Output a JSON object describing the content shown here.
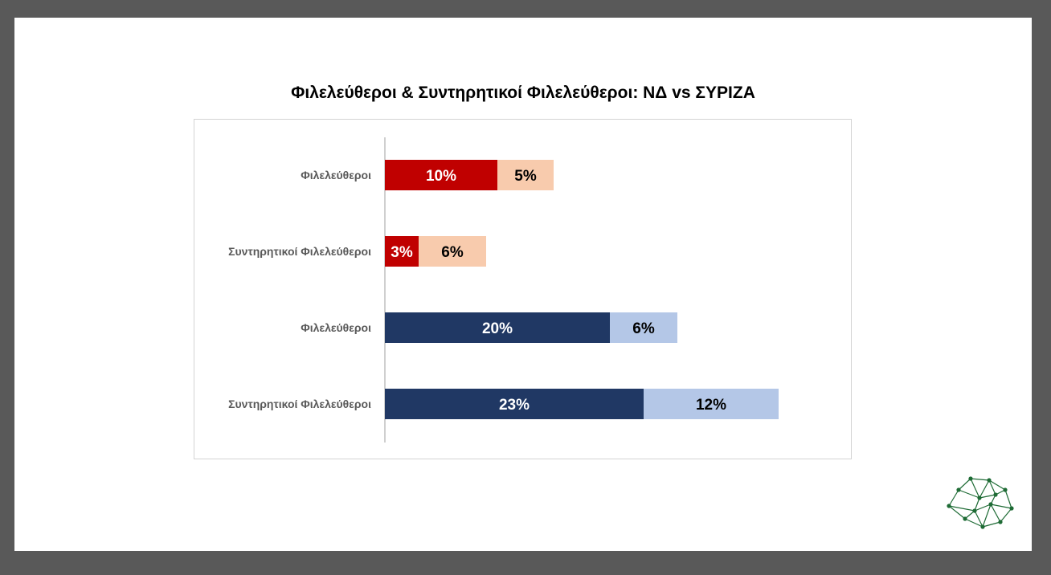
{
  "title": "Φιλελεύθεροι & Συντηρητικοί Φιλελεύθεροι: ΝΔ vs ΣΥΡΙΖΑ",
  "colors": {
    "nd_primary": "#c00000",
    "nd_secondary": "#f8cbad",
    "syriza_primary": "#203864",
    "syriza_secondary": "#b4c7e7",
    "axis": "#bfbfbf",
    "label_text": "#595959",
    "logo": "#1e6b35"
  },
  "chart_data": {
    "type": "bar",
    "orientation": "horizontal",
    "stacked": true,
    "categories": [
      "Φιλελεύθεροι",
      "Συντηρητικοί Φιλελεύθεροι",
      "Φιλελεύθεροι",
      "Συντηρητικοί Φιλελεύθεροι"
    ],
    "bars": [
      {
        "segments": [
          {
            "value": 10,
            "label": "10%",
            "color": "#c00000",
            "text_color": "#ffffff"
          },
          {
            "value": 5,
            "label": "5%",
            "color": "#f8cbad",
            "text_color": "#000000"
          }
        ]
      },
      {
        "segments": [
          {
            "value": 3,
            "label": "3%",
            "color": "#c00000",
            "text_color": "#ffffff"
          },
          {
            "value": 6,
            "label": "6%",
            "color": "#f8cbad",
            "text_color": "#000000"
          }
        ]
      },
      {
        "segments": [
          {
            "value": 20,
            "label": "20%",
            "color": "#203864",
            "text_color": "#ffffff"
          },
          {
            "value": 6,
            "label": "6%",
            "color": "#b4c7e7",
            "text_color": "#000000"
          }
        ]
      },
      {
        "segments": [
          {
            "value": 23,
            "label": "23%",
            "color": "#203864",
            "text_color": "#ffffff"
          },
          {
            "value": 12,
            "label": "12%",
            "color": "#b4c7e7",
            "text_color": "#000000"
          }
        ]
      }
    ],
    "xlim": [
      0,
      35
    ],
    "grid": false,
    "legend": "none"
  }
}
